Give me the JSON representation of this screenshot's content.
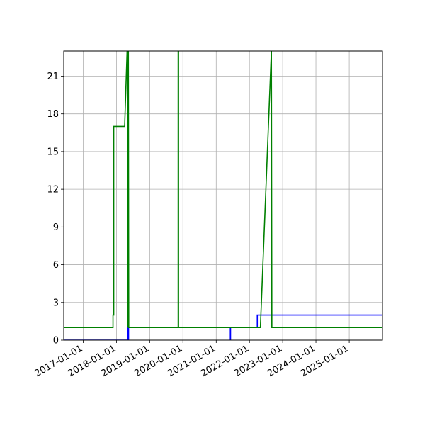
{
  "chart_data": {
    "type": "line",
    "title": "",
    "xlabel": "",
    "ylabel": "",
    "x_axis": {
      "scale": "date",
      "range": [
        "2016-06-01",
        "2026-01-01"
      ]
    },
    "y_axis": {
      "range": [
        0,
        23
      ]
    },
    "x_ticks": [
      "2017-01-01",
      "2018-01-01",
      "2019-01-01",
      "2020-01-01",
      "2021-01-01",
      "2022-01-01",
      "2023-01-01",
      "2024-01-01",
      "2025-01-01"
    ],
    "y_ticks": [
      0,
      3,
      6,
      9,
      12,
      15,
      18,
      21
    ],
    "grid": true,
    "legend": "none",
    "series": [
      {
        "color": "#0000ff",
        "points": [
          [
            "2016-06-01",
            0
          ],
          [
            "2018-05-08",
            0
          ],
          [
            "2018-05-08",
            1
          ],
          [
            "2018-05-10",
            1
          ],
          [
            "2018-05-10",
            0
          ],
          [
            "2018-05-14",
            0
          ],
          [
            "2018-05-14",
            1
          ],
          [
            "2021-06-05",
            1
          ],
          [
            "2021-06-05",
            0
          ],
          [
            "2021-06-07",
            0
          ],
          [
            "2021-06-07",
            1
          ],
          [
            "2022-03-28",
            1
          ],
          [
            "2022-03-28",
            2
          ],
          [
            "2026-01-01",
            2
          ]
        ]
      },
      {
        "color": "#008000",
        "points": [
          [
            "2016-06-01",
            1
          ],
          [
            "2017-11-24",
            1
          ],
          [
            "2017-11-24",
            2
          ],
          [
            "2017-12-02",
            2
          ],
          [
            "2017-12-02",
            17
          ],
          [
            "2018-04-01",
            17
          ],
          [
            "2018-04-28",
            23
          ],
          [
            "2018-05-05",
            23
          ],
          [
            "2018-05-08",
            1
          ],
          [
            "2018-05-12",
            23
          ],
          [
            "2018-05-16",
            1
          ],
          [
            "2019-11-10",
            1
          ],
          [
            "2019-11-10",
            23
          ],
          [
            "2019-11-14",
            23
          ],
          [
            "2019-11-14",
            1
          ],
          [
            "2022-04-10",
            1
          ],
          [
            "2022-05-01",
            1
          ],
          [
            "2022-08-30",
            23
          ],
          [
            "2022-09-04",
            1
          ],
          [
            "2026-01-01",
            1
          ]
        ]
      }
    ]
  }
}
